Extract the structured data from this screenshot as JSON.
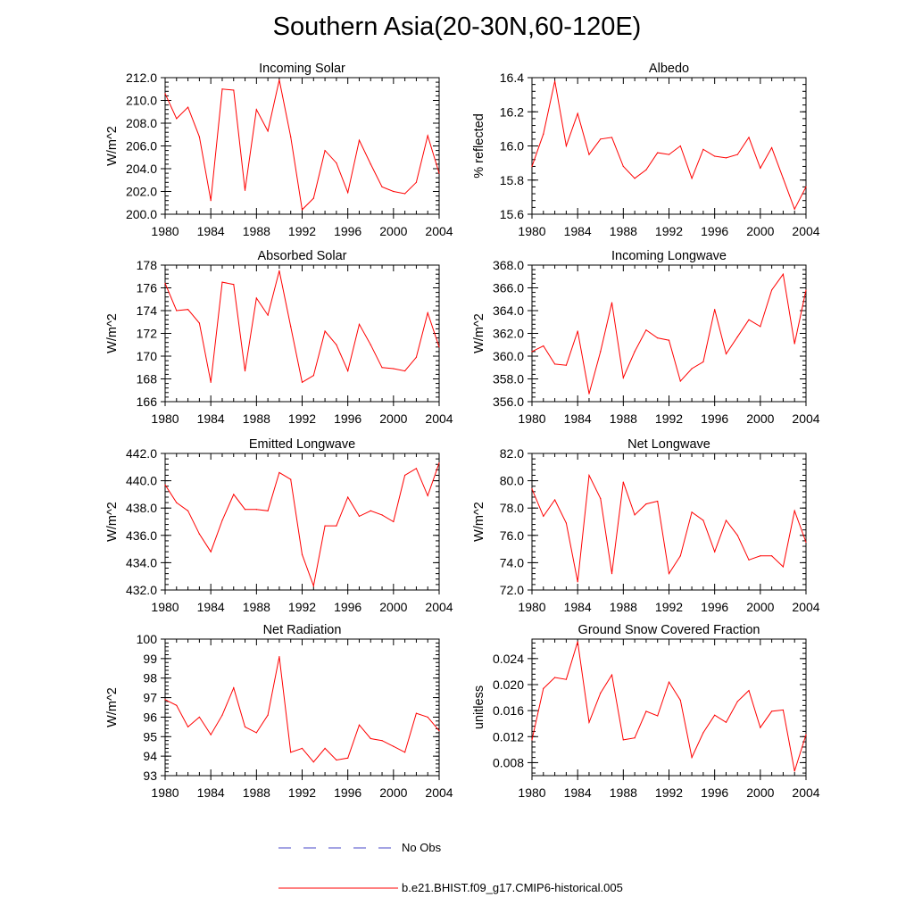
{
  "figure": {
    "title": "Southern Asia(20-30N,60-120E)",
    "colors": {
      "model": "#ff0000",
      "obs": "#4a4ac8",
      "axis": "#000000"
    }
  },
  "legend": {
    "obs_label": "No Obs",
    "model_label": "b.e21.BHIST.f09_g17.CMIP6-historical.005",
    "obs_style": "dashed",
    "model_style": "solid"
  },
  "chart_data": [
    {
      "type": "line",
      "title": "Incoming Solar",
      "xlabel": "",
      "ylabel": "W/m^2",
      "xlim": [
        1980,
        2004
      ],
      "ylim": [
        200.0,
        212.0
      ],
      "xticks": [
        "1980",
        "1984",
        "1988",
        "1992",
        "1996",
        "2000",
        "2004"
      ],
      "yticks": [
        "200.0",
        "202.0",
        "204.0",
        "206.0",
        "208.0",
        "210.0",
        "212.0"
      ],
      "x": [
        1980,
        1981,
        1982,
        1983,
        1984,
        1985,
        1986,
        1987,
        1988,
        1989,
        1990,
        1991,
        1992,
        1993,
        1994,
        1995,
        1996,
        1997,
        1998,
        1999,
        2000,
        2001,
        2002,
        2003,
        2004
      ],
      "series": [
        {
          "name": "b.e21.BHIST.f09_g17.CMIP6-historical.005",
          "values": [
            210.6,
            208.4,
            209.4,
            206.8,
            201.2,
            211.0,
            210.9,
            202.1,
            209.2,
            207.3,
            211.8,
            206.8,
            200.4,
            201.4,
            205.6,
            204.5,
            201.9,
            206.5,
            204.4,
            202.4,
            202.0,
            201.8,
            202.8,
            206.9,
            203.6
          ]
        }
      ]
    },
    {
      "type": "line",
      "title": "Albedo",
      "xlabel": "",
      "ylabel": "% reflected",
      "xlim": [
        1980,
        2004
      ],
      "ylim": [
        15.6,
        16.4
      ],
      "xticks": [
        "1980",
        "1984",
        "1988",
        "1992",
        "1996",
        "2000",
        "2004"
      ],
      "yticks": [
        "15.6",
        "15.8",
        "16.0",
        "16.2",
        "16.4"
      ],
      "x": [
        1980,
        1981,
        1982,
        1983,
        1984,
        1985,
        1986,
        1987,
        1988,
        1989,
        1990,
        1991,
        1992,
        1993,
        1994,
        1995,
        1996,
        1997,
        1998,
        1999,
        2000,
        2001,
        2002,
        2003,
        2004
      ],
      "series": [
        {
          "name": "b.e21.BHIST.f09_g17.CMIP6-historical.005",
          "values": [
            15.88,
            16.07,
            16.38,
            16.0,
            16.19,
            15.95,
            16.04,
            16.05,
            15.88,
            15.81,
            15.86,
            15.96,
            15.95,
            16.0,
            15.81,
            15.98,
            15.94,
            15.93,
            15.95,
            16.05,
            15.87,
            15.99,
            15.81,
            15.63,
            15.76
          ]
        }
      ]
    },
    {
      "type": "line",
      "title": "Absorbed Solar",
      "xlabel": "",
      "ylabel": "W/m^2",
      "xlim": [
        1980,
        2004
      ],
      "ylim": [
        166,
        178
      ],
      "xticks": [
        "1980",
        "1984",
        "1988",
        "1992",
        "1996",
        "2000",
        "2004"
      ],
      "yticks": [
        "166",
        "168",
        "170",
        "172",
        "174",
        "176",
        "178"
      ],
      "x": [
        1980,
        1981,
        1982,
        1983,
        1984,
        1985,
        1986,
        1987,
        1988,
        1989,
        1990,
        1991,
        1992,
        1993,
        1994,
        1995,
        1996,
        1997,
        1998,
        1999,
        2000,
        2001,
        2002,
        2003,
        2004
      ],
      "series": [
        {
          "name": "b.e21.BHIST.f09_g17.CMIP6-historical.005",
          "values": [
            176.4,
            174.0,
            174.1,
            172.9,
            167.7,
            176.5,
            176.3,
            168.7,
            175.1,
            173.6,
            177.5,
            172.6,
            167.7,
            168.3,
            172.2,
            171.0,
            168.7,
            172.8,
            171.0,
            169.0,
            168.9,
            168.7,
            169.9,
            173.8,
            170.8
          ]
        }
      ]
    },
    {
      "type": "line",
      "title": "Incoming Longwave",
      "xlabel": "",
      "ylabel": "W/m^2",
      "xlim": [
        1980,
        2004
      ],
      "ylim": [
        356.0,
        368.0
      ],
      "xticks": [
        "1980",
        "1984",
        "1988",
        "1992",
        "1996",
        "2000",
        "2004"
      ],
      "yticks": [
        "356.0",
        "358.0",
        "360.0",
        "362.0",
        "364.0",
        "366.0",
        "368.0"
      ],
      "x": [
        1980,
        1981,
        1982,
        1983,
        1984,
        1985,
        1986,
        1987,
        1988,
        1989,
        1990,
        1991,
        1992,
        1993,
        1994,
        1995,
        1996,
        1997,
        1998,
        1999,
        2000,
        2001,
        2002,
        2003,
        2004
      ],
      "series": [
        {
          "name": "b.e21.BHIST.f09_g17.CMIP6-historical.005",
          "values": [
            360.4,
            360.9,
            359.3,
            359.2,
            362.2,
            356.7,
            360.4,
            364.7,
            358.1,
            360.4,
            362.3,
            361.6,
            361.4,
            357.8,
            358.9,
            359.5,
            364.1,
            360.2,
            361.7,
            363.2,
            362.6,
            365.8,
            367.2,
            361.1,
            365.8
          ]
        }
      ]
    },
    {
      "type": "line",
      "title": "Emitted Longwave",
      "xlabel": "",
      "ylabel": "W/m^2",
      "xlim": [
        1980,
        2004
      ],
      "ylim": [
        432.0,
        442.0
      ],
      "xticks": [
        "1980",
        "1984",
        "1988",
        "1992",
        "1996",
        "2000",
        "2004"
      ],
      "yticks": [
        "432.0",
        "434.0",
        "436.0",
        "438.0",
        "440.0",
        "442.0"
      ],
      "x": [
        1980,
        1981,
        1982,
        1983,
        1984,
        1985,
        1986,
        1987,
        1988,
        1989,
        1990,
        1991,
        1992,
        1993,
        1994,
        1995,
        1996,
        1997,
        1998,
        1999,
        2000,
        2001,
        2002,
        2003,
        2004
      ],
      "series": [
        {
          "name": "b.e21.BHIST.f09_g17.CMIP6-historical.005",
          "values": [
            439.7,
            438.4,
            437.8,
            436.1,
            434.8,
            437.1,
            439.0,
            437.9,
            437.9,
            437.8,
            440.6,
            440.1,
            434.6,
            432.3,
            436.7,
            436.7,
            438.8,
            437.4,
            437.8,
            437.5,
            437.0,
            440.4,
            440.9,
            438.9,
            441.3
          ]
        }
      ]
    },
    {
      "type": "line",
      "title": "Net Longwave",
      "xlabel": "",
      "ylabel": "W/m^2",
      "xlim": [
        1980,
        2004
      ],
      "ylim": [
        72.0,
        82.0
      ],
      "xticks": [
        "1980",
        "1984",
        "1988",
        "1992",
        "1996",
        "2000",
        "2004"
      ],
      "yticks": [
        "72.0",
        "74.0",
        "76.0",
        "78.0",
        "80.0",
        "82.0"
      ],
      "x": [
        1980,
        1981,
        1982,
        1983,
        1984,
        1985,
        1986,
        1987,
        1988,
        1989,
        1990,
        1991,
        1992,
        1993,
        1994,
        1995,
        1996,
        1997,
        1998,
        1999,
        2000,
        2001,
        2002,
        2003,
        2004
      ],
      "series": [
        {
          "name": "b.e21.BHIST.f09_g17.CMIP6-historical.005",
          "values": [
            79.4,
            77.4,
            78.6,
            76.9,
            72.6,
            80.4,
            78.7,
            73.2,
            79.9,
            77.5,
            78.3,
            78.5,
            73.2,
            74.5,
            77.7,
            77.1,
            74.8,
            77.1,
            76.0,
            74.2,
            74.5,
            74.5,
            73.7,
            77.8,
            75.5
          ]
        }
      ]
    },
    {
      "type": "line",
      "title": "Net Radiation",
      "xlabel": "",
      "ylabel": "W/m^2",
      "xlim": [
        1980,
        2004
      ],
      "ylim": [
        93,
        100
      ],
      "xticks": [
        "1980",
        "1984",
        "1988",
        "1992",
        "1996",
        "2000",
        "2004"
      ],
      "yticks": [
        "93",
        "94",
        "95",
        "96",
        "97",
        "98",
        "99",
        "100"
      ],
      "x": [
        1980,
        1981,
        1982,
        1983,
        1984,
        1985,
        1986,
        1987,
        1988,
        1989,
        1990,
        1991,
        1992,
        1993,
        1994,
        1995,
        1996,
        1997,
        1998,
        1999,
        2000,
        2001,
        2002,
        2003,
        2004
      ],
      "series": [
        {
          "name": "b.e21.BHIST.f09_g17.CMIP6-historical.005",
          "values": [
            96.9,
            96.6,
            95.5,
            96.0,
            95.1,
            96.1,
            97.5,
            95.5,
            95.2,
            96.1,
            99.1,
            94.2,
            94.4,
            93.7,
            94.4,
            93.8,
            93.9,
            95.6,
            94.9,
            94.8,
            94.5,
            94.2,
            96.2,
            96.0,
            95.3
          ]
        }
      ]
    },
    {
      "type": "line",
      "title": "Ground Snow Covered Fraction",
      "xlabel": "",
      "ylabel": "unitless",
      "xlim": [
        1980,
        2004
      ],
      "ylim": [
        0.006,
        0.027
      ],
      "xticks": [
        "1980",
        "1984",
        "1988",
        "1992",
        "1996",
        "2000",
        "2004"
      ],
      "yticks": [
        "0.008",
        "0.012",
        "0.016",
        "0.020",
        "0.024"
      ],
      "x": [
        1980,
        1981,
        1982,
        1983,
        1984,
        1985,
        1986,
        1987,
        1988,
        1989,
        1990,
        1991,
        1992,
        1993,
        1994,
        1995,
        1996,
        1997,
        1998,
        1999,
        2000,
        2001,
        2002,
        2003,
        2004
      ],
      "series": [
        {
          "name": "b.e21.BHIST.f09_g17.CMIP6-historical.005",
          "values": [
            0.0115,
            0.0194,
            0.0211,
            0.0208,
            0.0266,
            0.0142,
            0.0187,
            0.0215,
            0.0115,
            0.0118,
            0.0159,
            0.0152,
            0.0204,
            0.0176,
            0.0088,
            0.0126,
            0.0153,
            0.0142,
            0.0174,
            0.0191,
            0.0134,
            0.0159,
            0.0161,
            0.0067,
            0.0123
          ]
        }
      ]
    }
  ]
}
